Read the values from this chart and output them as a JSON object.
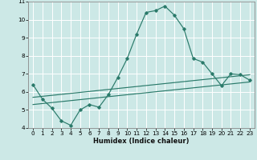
{
  "title": "",
  "xlabel": "Humidex (Indice chaleur)",
  "ylabel": "",
  "bg_color": "#cce8e6",
  "grid_color": "#ffffff",
  "line_color": "#2a7a6a",
  "xlim": [
    -0.5,
    23.5
  ],
  "ylim": [
    4,
    11
  ],
  "xticks": [
    0,
    1,
    2,
    3,
    4,
    5,
    6,
    7,
    8,
    9,
    10,
    11,
    12,
    13,
    14,
    15,
    16,
    17,
    18,
    19,
    20,
    21,
    22,
    23
  ],
  "yticks": [
    4,
    5,
    6,
    7,
    8,
    9,
    10,
    11
  ],
  "line1_x": [
    0,
    1,
    2,
    3,
    4,
    5,
    6,
    7,
    8,
    9,
    10,
    11,
    12,
    13,
    14,
    15,
    16,
    17,
    18,
    19,
    20,
    21,
    22,
    23
  ],
  "line1_y": [
    6.4,
    5.6,
    5.1,
    4.4,
    4.15,
    5.0,
    5.3,
    5.15,
    5.85,
    6.8,
    7.85,
    9.2,
    10.4,
    10.5,
    10.75,
    10.25,
    9.5,
    7.85,
    7.65,
    7.0,
    6.35,
    7.0,
    6.95,
    6.65
  ],
  "line2_x": [
    0,
    23
  ],
  "line2_y": [
    5.3,
    6.55
  ],
  "line3_x": [
    0,
    23
  ],
  "line3_y": [
    5.7,
    6.95
  ]
}
